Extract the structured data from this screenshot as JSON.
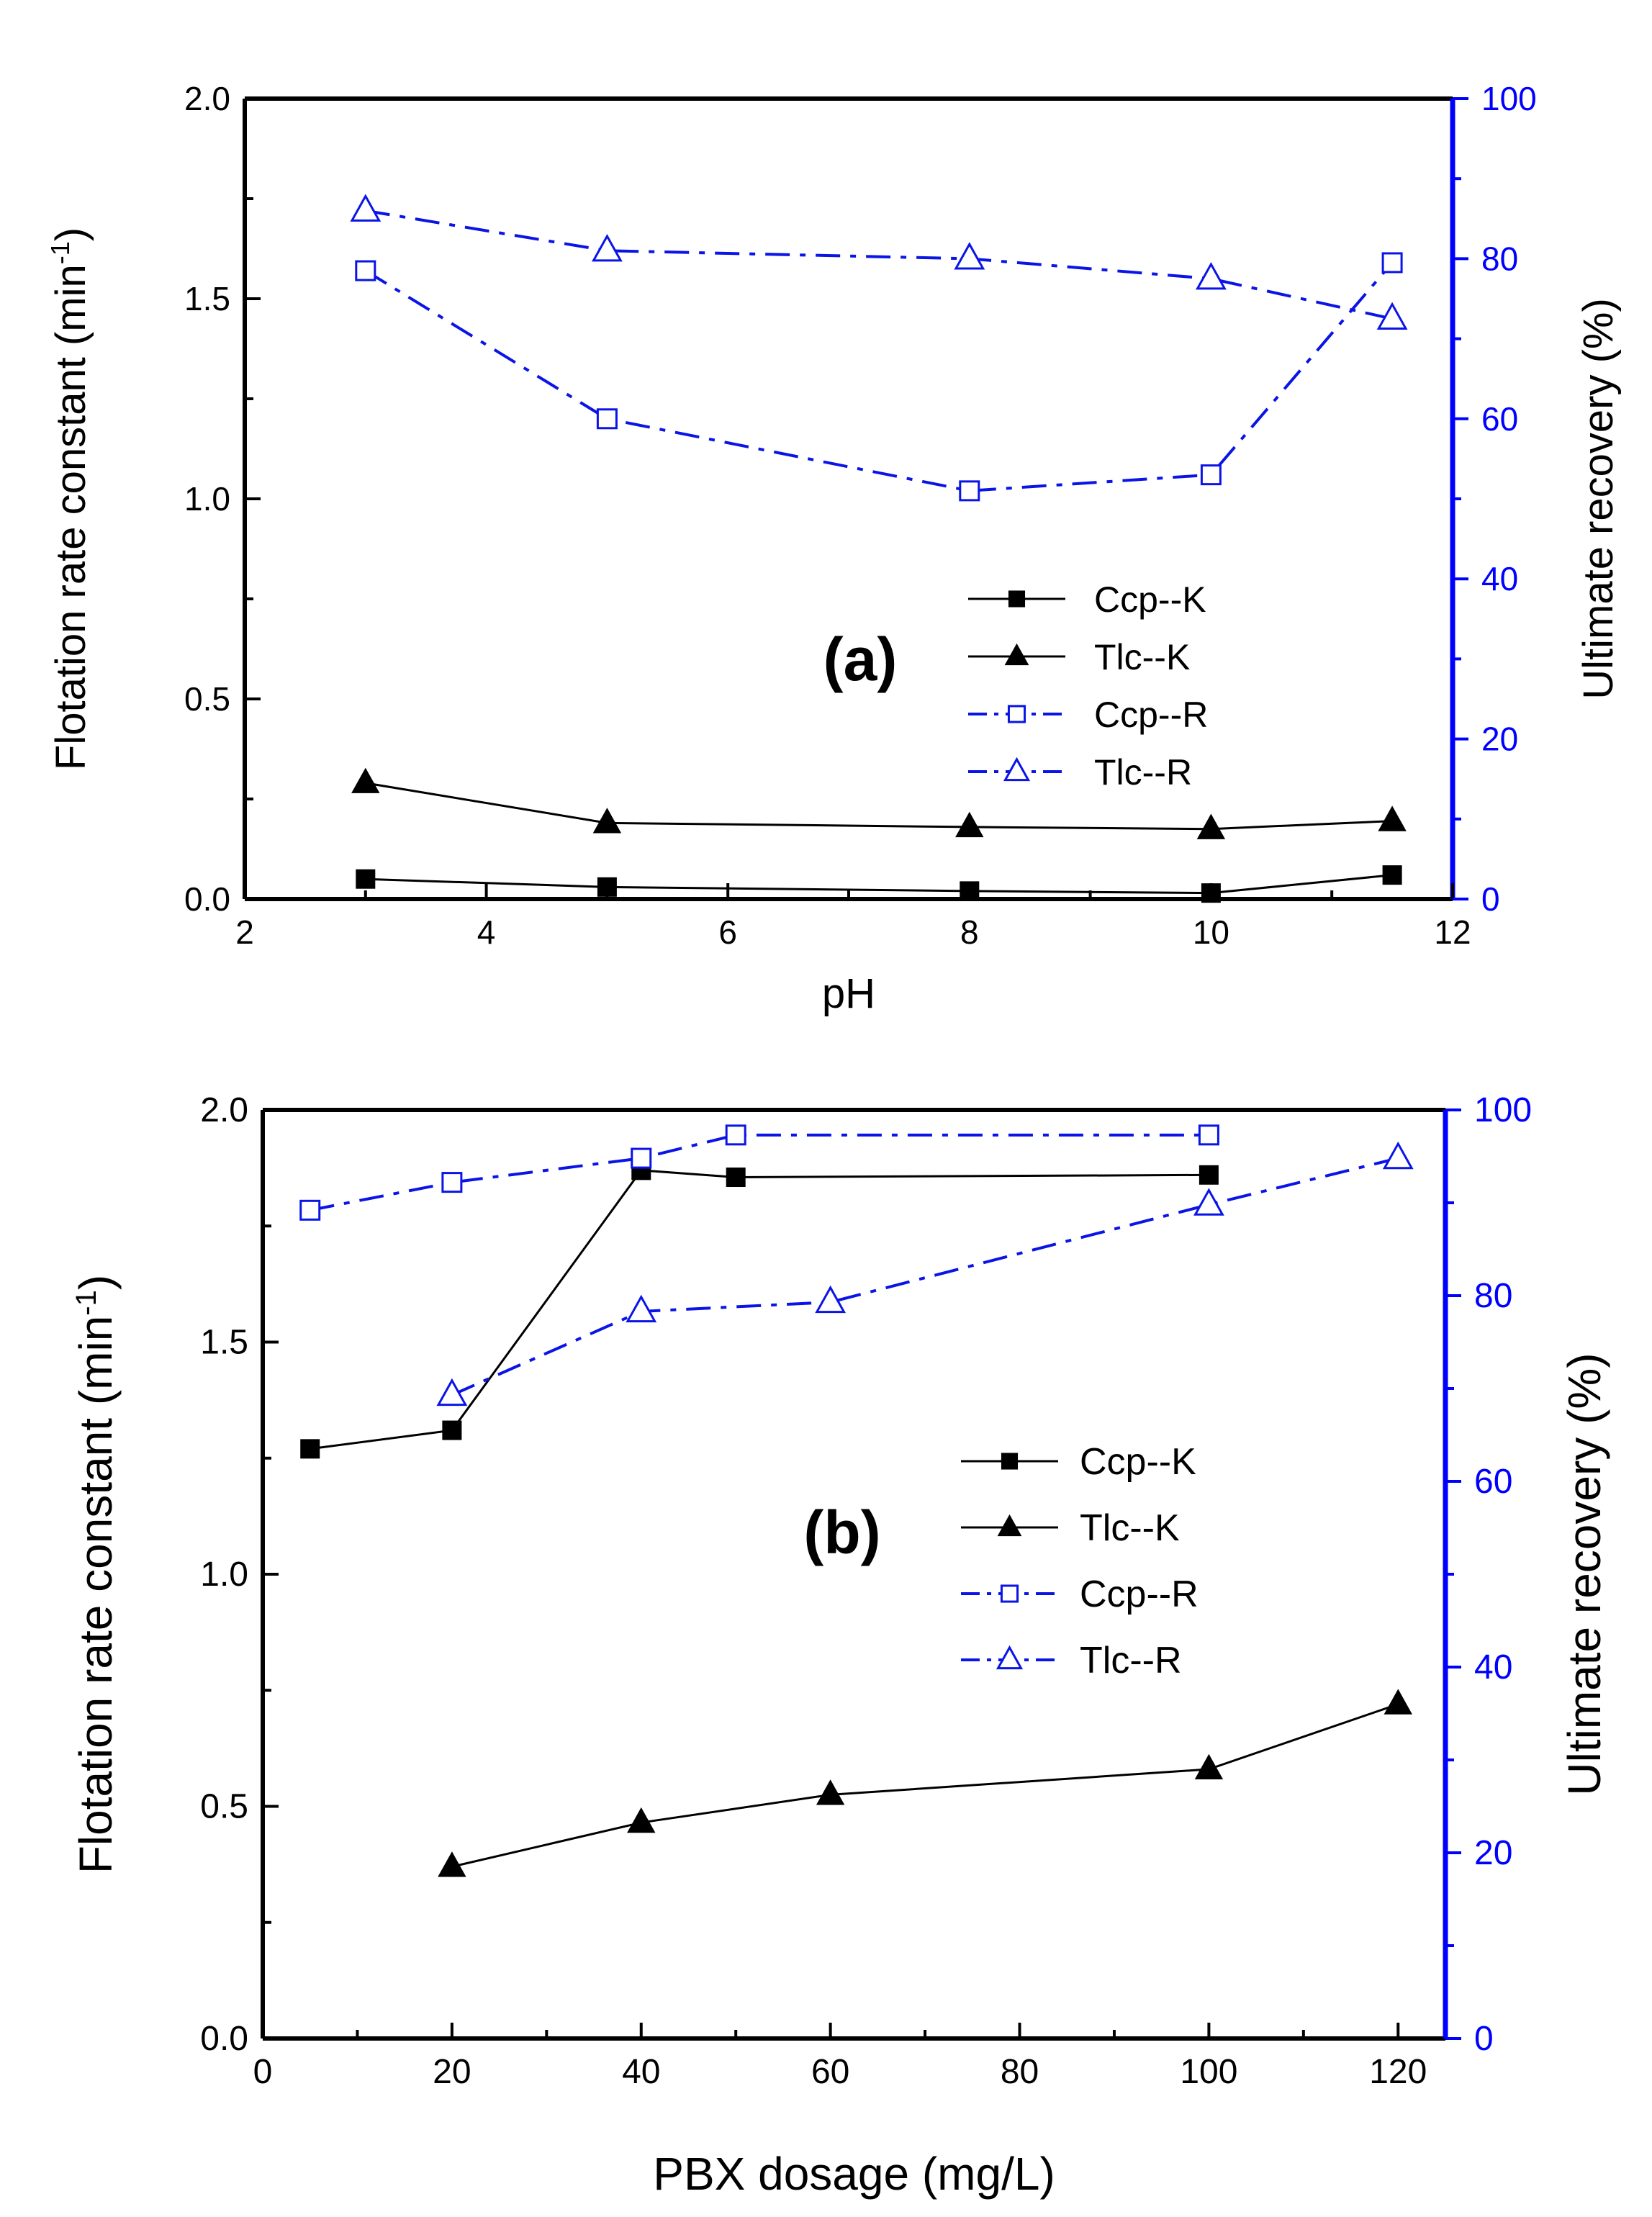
{
  "colors": {
    "k_series": "#000000",
    "r_series": "#0a14e6",
    "right_axis": "#0000ff",
    "frame": "#000000"
  },
  "chart_data": [
    {
      "id": "a",
      "type": "line",
      "panel_label": "(a)",
      "xlabel": "pH",
      "ylabel_main": "Flotation rate constant (min",
      "ylabel_sup": "-1",
      "ylabel_close": ")",
      "y2label": "Ultimate recovery (%)",
      "xlim": [
        2,
        12
      ],
      "xticks": [
        2,
        4,
        6,
        8,
        10,
        12
      ],
      "ylim": [
        0,
        2
      ],
      "yticks": [
        0.0,
        0.5,
        1.0,
        1.5,
        2.0
      ],
      "ytick_labels": [
        "0.0",
        "0.5",
        "1.0",
        "1.5",
        "2.0"
      ],
      "y2lim": [
        0,
        100
      ],
      "y2ticks": [
        0,
        20,
        40,
        60,
        80,
        100
      ],
      "legend_position": "center-right",
      "series": [
        {
          "name": "Ccp--K",
          "axis": "left",
          "marker": "square-filled",
          "line": "solid",
          "x": [
            3,
            5,
            8,
            10,
            11.5
          ],
          "y": [
            0.05,
            0.03,
            0.02,
            0.015,
            0.06
          ]
        },
        {
          "name": "Tlc--K",
          "axis": "left",
          "marker": "triangle-filled",
          "line": "solid",
          "x": [
            3,
            5,
            8,
            10,
            11.5
          ],
          "y": [
            0.29,
            0.19,
            0.18,
            0.175,
            0.195
          ]
        },
        {
          "name": "Ccp--R",
          "axis": "right",
          "marker": "square-open",
          "line": "dashdot",
          "x": [
            3,
            5,
            8,
            10,
            11.5
          ],
          "y": [
            78.5,
            60,
            51,
            53,
            79.5
          ]
        },
        {
          "name": "Tlc--R",
          "axis": "right",
          "marker": "triangle-open",
          "line": "dashdot",
          "x": [
            3,
            5,
            8,
            10,
            11.5
          ],
          "y": [
            86,
            81,
            80,
            77.5,
            72.5
          ]
        }
      ]
    },
    {
      "id": "b",
      "type": "line",
      "panel_label": "(b)",
      "xlabel": "PBX dosage (mg/L)",
      "ylabel_main": "Flotation rate constant (min",
      "ylabel_sup": "-1",
      "ylabel_close": ")",
      "y2label": "Ultimate recovery (%)",
      "xlim": [
        0,
        125
      ],
      "xticks": [
        0,
        20,
        40,
        60,
        80,
        100,
        120
      ],
      "ylim": [
        0,
        2
      ],
      "yticks": [
        0.0,
        0.5,
        1.0,
        1.5,
        2.0
      ],
      "ytick_labels": [
        "0.0",
        "0.5",
        "1.0",
        "1.5",
        "2.0"
      ],
      "y2lim": [
        0,
        100
      ],
      "y2ticks": [
        0,
        20,
        40,
        60,
        80,
        100
      ],
      "legend_position": "center-right",
      "series": [
        {
          "name": "Ccp--K",
          "axis": "left",
          "marker": "square-filled",
          "line": "solid",
          "x": [
            5,
            20,
            40,
            50,
            100
          ],
          "y": [
            1.27,
            1.31,
            1.87,
            1.855,
            1.86
          ]
        },
        {
          "name": "Tlc--K",
          "axis": "left",
          "marker": "triangle-filled",
          "line": "solid",
          "x": [
            20,
            40,
            60,
            100,
            120
          ],
          "y": [
            0.37,
            0.465,
            0.525,
            0.58,
            0.72
          ]
        },
        {
          "name": "Ccp--R",
          "axis": "right",
          "marker": "square-open",
          "line": "dashdot",
          "x": [
            5,
            20,
            40,
            50,
            100
          ],
          "y": [
            89.2,
            92.2,
            94.8,
            97.3,
            97.3
          ]
        },
        {
          "name": "Tlc--R",
          "axis": "right",
          "marker": "triangle-open",
          "line": "dashdot",
          "x": [
            20,
            40,
            60,
            100,
            120
          ],
          "y": [
            69.3,
            78.3,
            79.3,
            89.8,
            94.8
          ]
        }
      ]
    }
  ]
}
